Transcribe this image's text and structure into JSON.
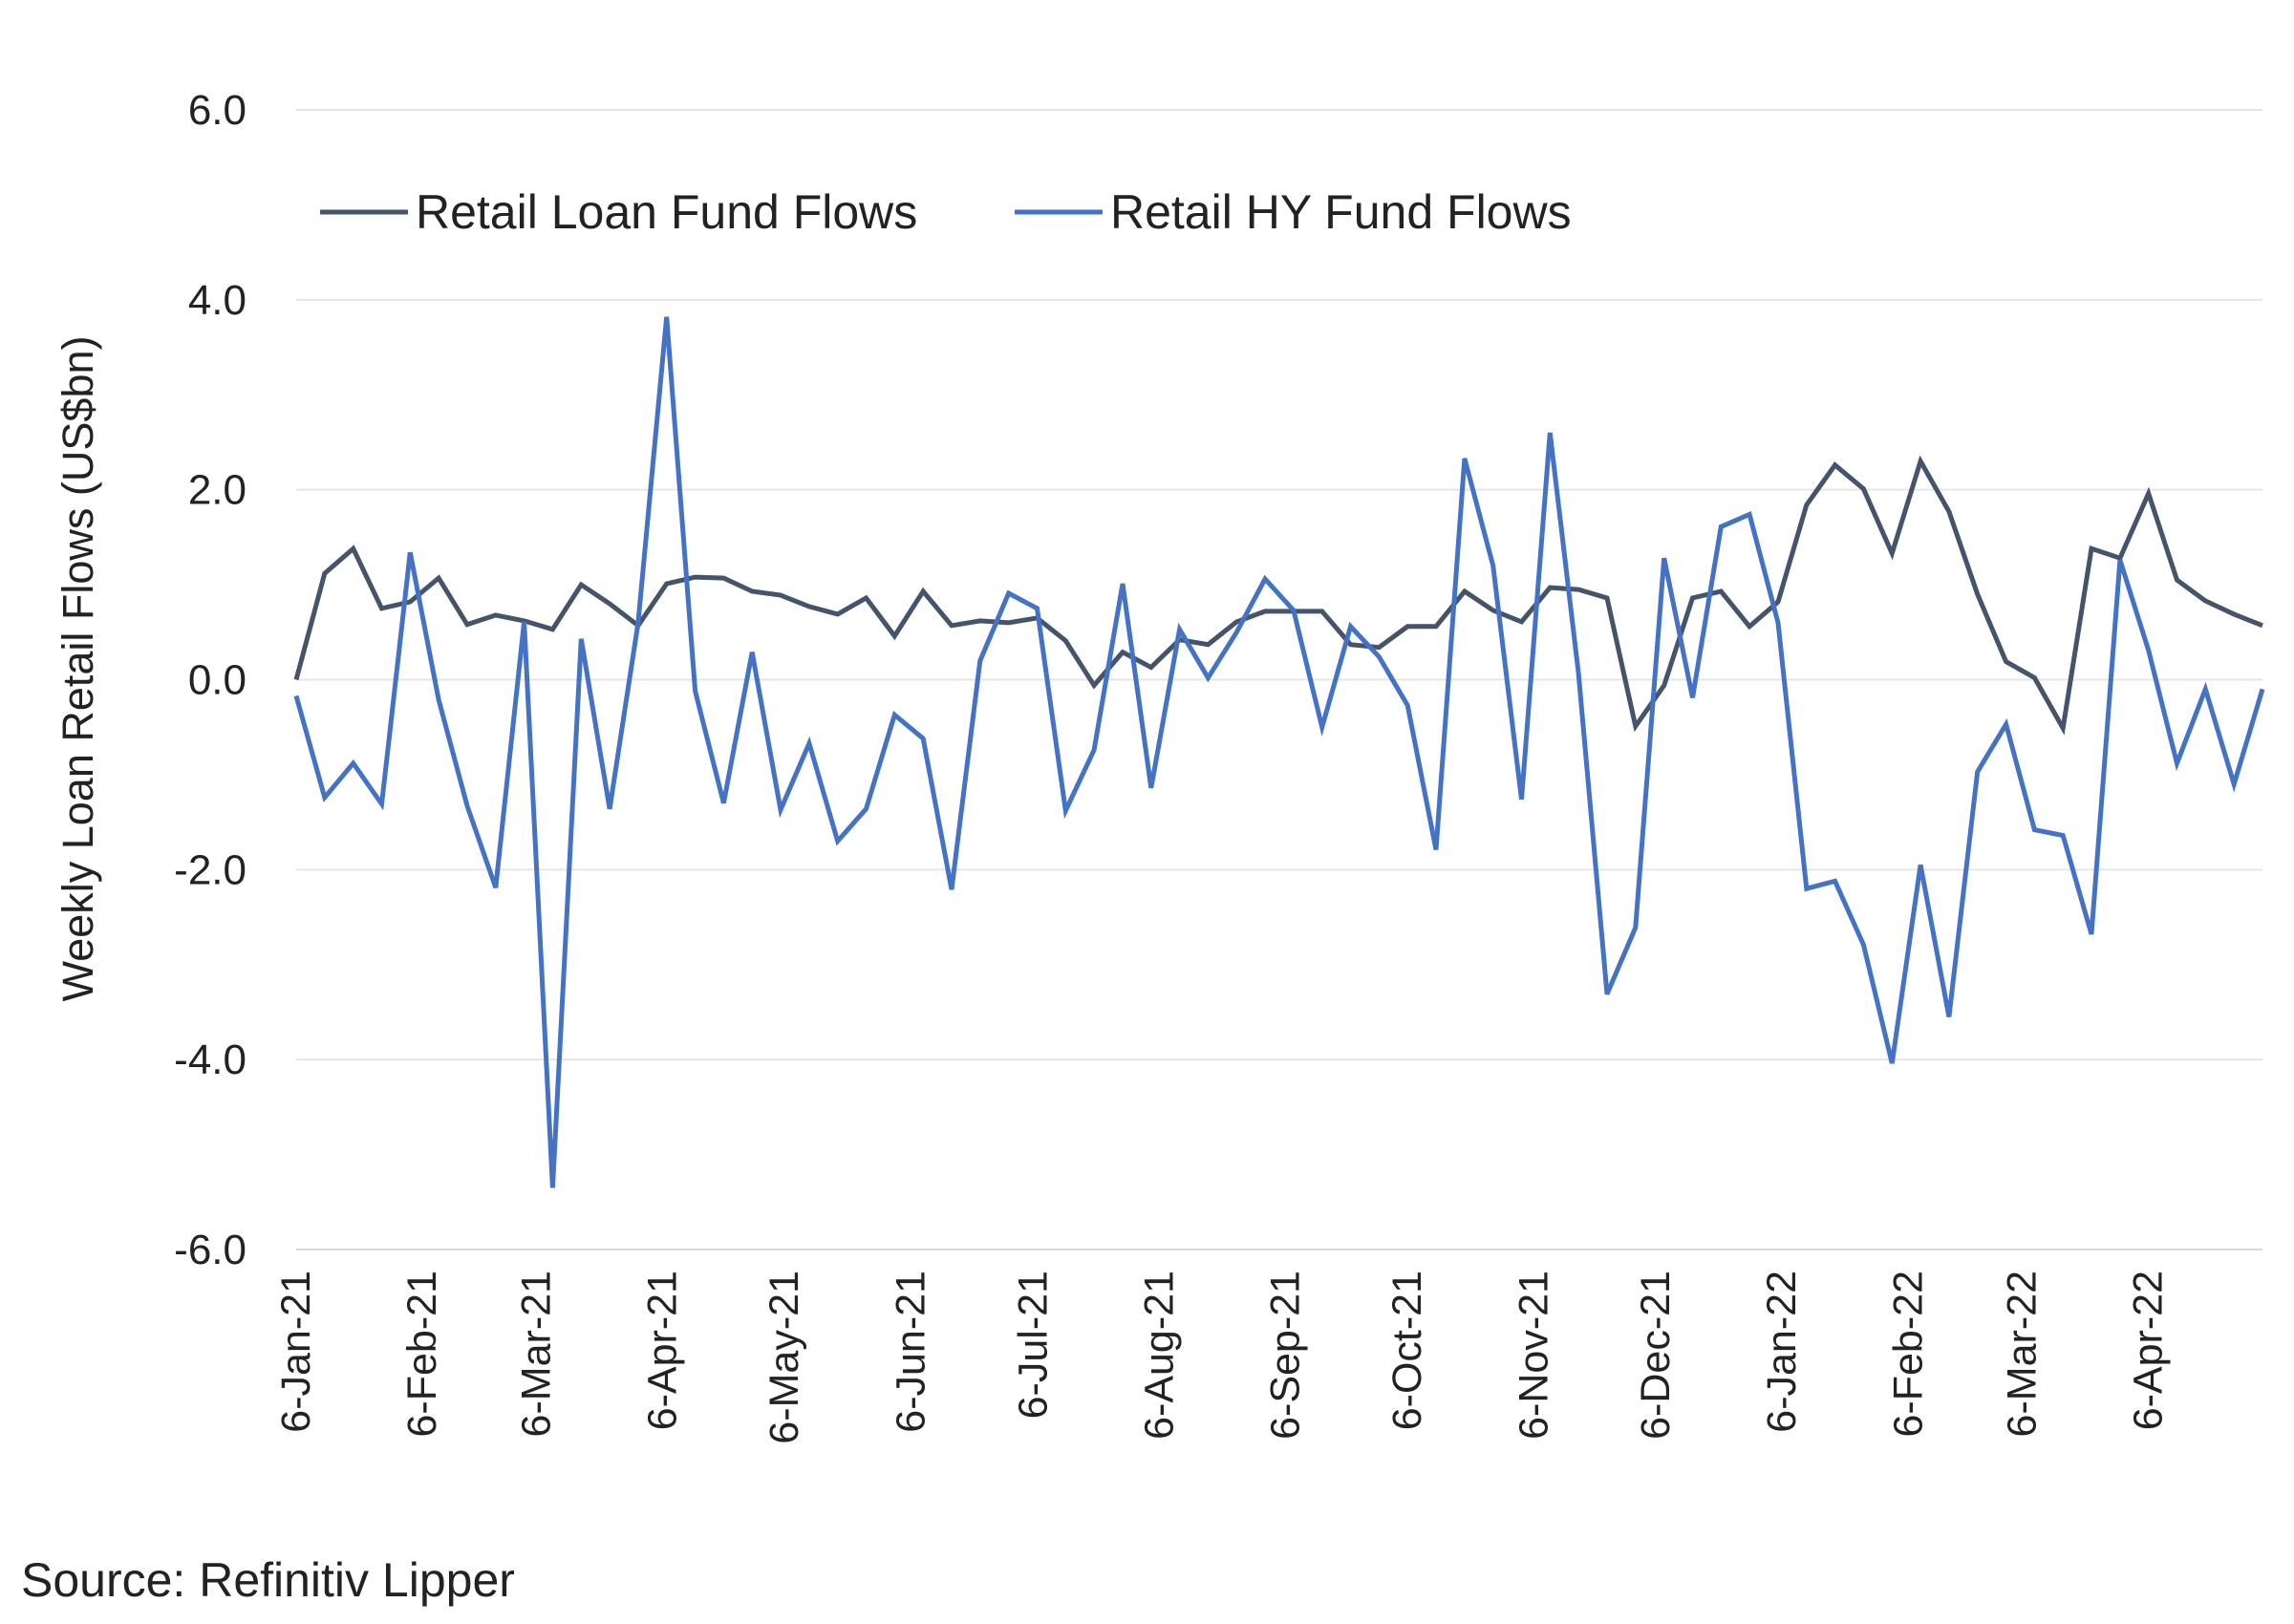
{
  "chart_data": {
    "type": "line",
    "ylabel": "Weekly Loan Retail Flows (US$bn)",
    "xlabel": "",
    "ylim": [
      -6,
      6
    ],
    "yticks": [
      6,
      4,
      2,
      0,
      -2,
      -4,
      -6
    ],
    "ytick_labels": [
      "6.0",
      "4.0",
      "2.0",
      "0.0",
      "-2.0",
      "-4.0",
      "-6.0"
    ],
    "grid": true,
    "legend_position": "top-left",
    "x": [
      "6-Jan-21",
      "13-Jan-21",
      "20-Jan-21",
      "27-Jan-21",
      "3-Feb-21",
      "10-Feb-21",
      "17-Feb-21",
      "24-Feb-21",
      "3-Mar-21",
      "10-Mar-21",
      "17-Mar-21",
      "24-Mar-21",
      "31-Mar-21",
      "7-Apr-21",
      "14-Apr-21",
      "21-Apr-21",
      "28-Apr-21",
      "5-May-21",
      "12-May-21",
      "19-May-21",
      "26-May-21",
      "2-Jun-21",
      "9-Jun-21",
      "16-Jun-21",
      "23-Jun-21",
      "30-Jun-21",
      "7-Jul-21",
      "14-Jul-21",
      "21-Jul-21",
      "28-Jul-21",
      "4-Aug-21",
      "11-Aug-21",
      "18-Aug-21",
      "25-Aug-21",
      "1-Sep-21",
      "8-Sep-21",
      "15-Sep-21",
      "22-Sep-21",
      "29-Sep-21",
      "6-Oct-21",
      "13-Oct-21",
      "20-Oct-21",
      "27-Oct-21",
      "3-Nov-21",
      "10-Nov-21",
      "17-Nov-21",
      "24-Nov-21",
      "1-Dec-21",
      "8-Dec-21",
      "15-Dec-21",
      "22-Dec-21",
      "29-Dec-21",
      "5-Jan-22",
      "12-Jan-22",
      "19-Jan-22",
      "26-Jan-22",
      "2-Feb-22",
      "9-Feb-22",
      "16-Feb-22",
      "23-Feb-22",
      "2-Mar-22",
      "9-Mar-22",
      "16-Mar-22",
      "23-Mar-22",
      "30-Mar-22",
      "6-Apr-22",
      "13-Apr-22",
      "20-Apr-22",
      "27-Apr-22",
      "4-May-22"
    ],
    "x_tick_labels": [
      "6-Jan-21",
      "6-Feb-21",
      "6-Mar-21",
      "6-Apr-21",
      "6-May-21",
      "6-Jun-21",
      "6-Jul-21",
      "6-Aug-21",
      "6-Sep-21",
      "6-Oct-21",
      "6-Nov-21",
      "6-Dec-21",
      "6-Jan-22",
      "6-Feb-22",
      "6-Mar-22",
      "6-Apr-22"
    ],
    "x_tick_indices": [
      0,
      4.43,
      8.43,
      12.86,
      17.14,
      21.57,
      25.86,
      30.29,
      34.71,
      39,
      43.43,
      47.71,
      52.14,
      56.57,
      60.57,
      65
    ],
    "series": [
      {
        "name": "Retail Loan Fund Flows",
        "color": "#44546a",
        "values": [
          0.0,
          1.12,
          1.38,
          0.75,
          0.82,
          1.07,
          0.58,
          0.68,
          0.62,
          0.53,
          1.0,
          0.8,
          0.57,
          1.01,
          1.08,
          1.07,
          0.93,
          0.89,
          0.77,
          0.69,
          0.86,
          0.46,
          0.93,
          0.57,
          0.62,
          0.6,
          0.65,
          0.41,
          -0.06,
          0.29,
          0.13,
          0.42,
          0.37,
          0.61,
          0.72,
          0.72,
          0.72,
          0.37,
          0.34,
          0.56,
          0.56,
          0.93,
          0.73,
          0.61,
          0.97,
          0.95,
          0.86,
          -0.49,
          -0.06,
          0.86,
          0.93,
          0.56,
          0.82,
          1.84,
          2.26,
          2.01,
          1.33,
          2.3,
          1.77,
          0.9,
          0.19,
          0.02,
          -0.51,
          1.38,
          1.28,
          1.96,
          1.05,
          0.83,
          0.69,
          0.57
        ]
      },
      {
        "name": "Retail HY Fund Flows",
        "color": "#4472c4",
        "values": [
          -0.17,
          -1.24,
          -0.88,
          -1.31,
          1.34,
          -0.21,
          -1.33,
          -2.19,
          0.61,
          -5.35,
          0.43,
          -1.36,
          0.6,
          3.82,
          -0.12,
          -1.3,
          0.29,
          -1.37,
          -0.67,
          -1.7,
          -1.36,
          -0.37,
          -0.62,
          -2.21,
          0.2,
          0.91,
          0.75,
          -1.38,
          -0.74,
          1.01,
          -1.14,
          0.53,
          0.02,
          0.5,
          1.06,
          0.73,
          -0.5,
          0.56,
          0.24,
          -0.27,
          -1.79,
          2.33,
          1.2,
          -1.26,
          2.6,
          0.06,
          -3.31,
          -2.61,
          1.28,
          -0.19,
          1.61,
          1.74,
          0.6,
          -2.2,
          -2.12,
          -2.79,
          -4.04,
          -1.95,
          -3.55,
          -0.97,
          -0.47,
          -1.58,
          -1.64,
          -2.68,
          1.26,
          0.31,
          -0.88,
          -0.1,
          -1.1,
          -0.1
        ]
      }
    ]
  },
  "source": "Source: Refinitiv Lipper"
}
